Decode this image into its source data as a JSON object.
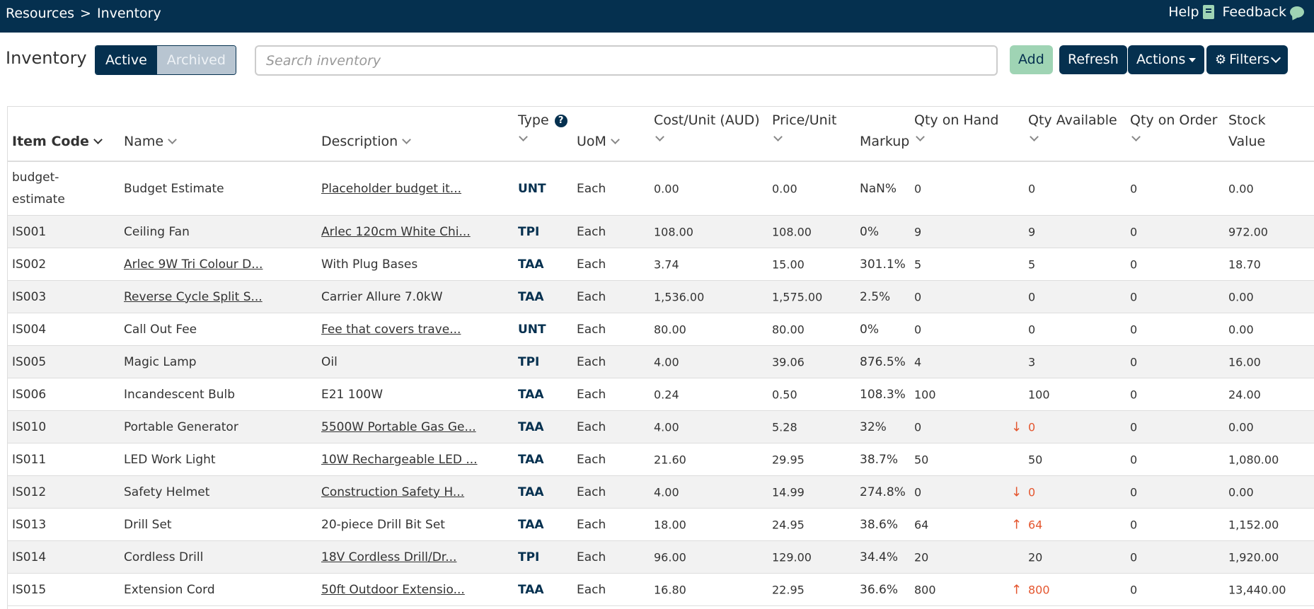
{
  "topbar": {
    "breadcrumb": [
      "Resources",
      ">",
      "Inventory"
    ],
    "help_label": "Help",
    "help_icon": "book-icon",
    "feedback_label": "Feedback",
    "feedback_icon": "chat-bubble-icon"
  },
  "toolbar": {
    "title": "Inventory",
    "tab_active": "Active",
    "tab_archived": "Archived",
    "search_placeholder": "Search inventory",
    "add_label": "Add",
    "refresh_label": "Refresh",
    "actions_label": "Actions",
    "filters_label": "Filters"
  },
  "colors": {
    "navy": "#05304f",
    "green": "#9fd4b4",
    "warning": "#e4562f"
  },
  "table": {
    "columns": {
      "item_code": "Item Code",
      "name": "Name",
      "description": "Description",
      "type": "Type",
      "uom": "UoM",
      "cost": "Cost/Unit (AUD)",
      "price": "Price/Unit",
      "markup": "Markup",
      "qty_on_hand": "Qty on Hand",
      "qty_available": "Qty Available",
      "qty_on_order": "Qty on Order",
      "stock_value_1": "Stock",
      "stock_value_2": "Value"
    },
    "rows": [
      {
        "code": "budget-estimate",
        "name": "Budget Estimate",
        "desc": "Placeholder budget it...",
        "type": "UNT",
        "uom": "Each",
        "cost": "0.00",
        "price": "0.00",
        "markup": "NaN%",
        "onhand": "0",
        "avail": "0",
        "onorder": "0",
        "value": "0.00"
      },
      {
        "code": "IS001",
        "name": "Ceiling Fan",
        "desc": "Arlec 120cm White Chi...",
        "type": "TPI",
        "uom": "Each",
        "cost": "108.00",
        "price": "108.00",
        "markup": "0%",
        "onhand": "9",
        "avail": "9",
        "onorder": "0",
        "value": "972.00"
      },
      {
        "code": "IS002",
        "name": "Arlec 9W Tri Colour D...",
        "desc": "With Plug Bases",
        "type": "TAA",
        "uom": "Each",
        "cost": "3.74",
        "price": "15.00",
        "markup": "301.1%",
        "onhand": "5",
        "avail": "5",
        "onorder": "0",
        "value": "18.70"
      },
      {
        "code": "IS003",
        "name": "Reverse Cycle Split S...",
        "desc": "Carrier Allure 7.0kW",
        "type": "TAA",
        "uom": "Each",
        "cost": "1,536.00",
        "price": "1,575.00",
        "markup": "2.5%",
        "onhand": "0",
        "avail": "0",
        "onorder": "0",
        "value": "0.00"
      },
      {
        "code": "IS004",
        "name": "Call Out Fee",
        "desc": "Fee that covers trave...",
        "type": "UNT",
        "uom": "Each",
        "cost": "80.00",
        "price": "80.00",
        "markup": "0%",
        "onhand": "0",
        "avail": "0",
        "onorder": "0",
        "value": "0.00"
      },
      {
        "code": "IS005",
        "name": "Magic Lamp",
        "desc": "Oil",
        "type": "TPI",
        "uom": "Each",
        "cost": "4.00",
        "price": "39.06",
        "markup": "876.5%",
        "onhand": "4",
        "avail": "3",
        "onorder": "0",
        "value": "16.00"
      },
      {
        "code": "IS006",
        "name": "Incandescent Bulb",
        "desc": "E21 100W",
        "type": "TAA",
        "uom": "Each",
        "cost": "0.24",
        "price": "0.50",
        "markup": "108.3%",
        "onhand": "100",
        "avail": "100",
        "onorder": "0",
        "value": "24.00"
      },
      {
        "code": "IS010",
        "name": "Portable Generator",
        "desc": "5500W Portable Gas Ge...",
        "type": "TAA",
        "uom": "Each",
        "cost": "4.00",
        "price": "5.28",
        "markup": "32%",
        "onhand": "0",
        "avail": "0",
        "onorder": "0",
        "value": "0.00"
      },
      {
        "code": "IS011",
        "name": "LED Work Light",
        "desc": "10W Rechargeable LED ...",
        "type": "TAA",
        "uom": "Each",
        "cost": "21.60",
        "price": "29.95",
        "markup": "38.7%",
        "onhand": "50",
        "avail": "50",
        "onorder": "0",
        "value": "1,080.00"
      },
      {
        "code": "IS012",
        "name": "Safety Helmet",
        "desc": "Construction Safety H...",
        "type": "TAA",
        "uom": "Each",
        "cost": "4.00",
        "price": "14.99",
        "markup": "274.8%",
        "onhand": "0",
        "avail": "0",
        "onorder": "0",
        "value": "0.00"
      },
      {
        "code": "IS013",
        "name": "Drill Set",
        "desc": "20-piece Drill Bit Set",
        "type": "TAA",
        "uom": "Each",
        "cost": "18.00",
        "price": "24.95",
        "markup": "38.6%",
        "onhand": "64",
        "avail": "64",
        "onorder": "0",
        "value": "1,152.00"
      },
      {
        "code": "IS014",
        "name": "Cordless Drill",
        "desc": "18V Cordless Drill/Dr...",
        "type": "TPI",
        "uom": "Each",
        "cost": "96.00",
        "price": "129.00",
        "markup": "34.4%",
        "onhand": "20",
        "avail": "20",
        "onorder": "0",
        "value": "1,920.00"
      },
      {
        "code": "IS015",
        "name": "Extension Cord",
        "desc": "50ft Outdoor Extensio...",
        "type": "TAA",
        "uom": "Each",
        "cost": "16.80",
        "price": "22.95",
        "markup": "36.6%",
        "onhand": "800",
        "avail": "800",
        "onorder": "0",
        "value": "13,440.00"
      }
    ]
  }
}
